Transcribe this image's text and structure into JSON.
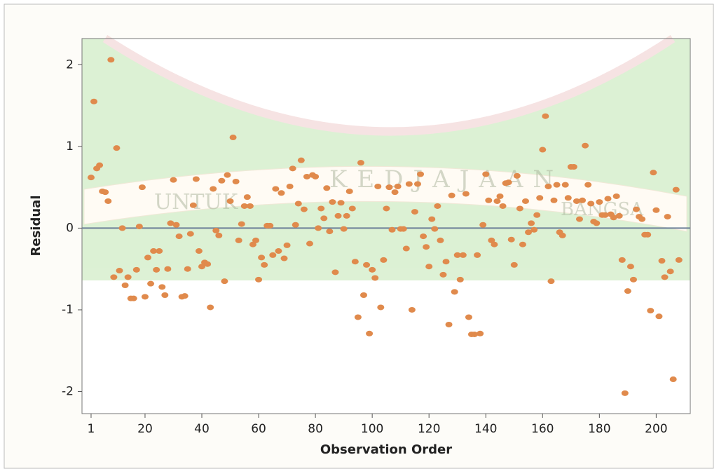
{
  "chart_data": {
    "type": "scatter",
    "x_label": "Observation Order",
    "y_label": "Residual",
    "watermark": [
      "UNTUK",
      "KEDJAJAAN",
      "BANGSA"
    ],
    "x": [
      1,
      2,
      3,
      4,
      5,
      6,
      7,
      8,
      9,
      10,
      11,
      12,
      13,
      14,
      15,
      16,
      17,
      18,
      19,
      20,
      21,
      22,
      23,
      24,
      25,
      26,
      27,
      28,
      29,
      30,
      31,
      32,
      33,
      34,
      35,
      36,
      37,
      38,
      39,
      40,
      41,
      42,
      43,
      44,
      45,
      46,
      47,
      48,
      49,
      50,
      51,
      52,
      53,
      54,
      55,
      56,
      57,
      58,
      59,
      60,
      61,
      62,
      63,
      64,
      65,
      66,
      67,
      68,
      69,
      70,
      71,
      72,
      73,
      74,
      75,
      76,
      77,
      78,
      79,
      80,
      81,
      82,
      83,
      84,
      85,
      86,
      87,
      88,
      89,
      90,
      91,
      92,
      93,
      94,
      95,
      96,
      97,
      98,
      99,
      100,
      101,
      102,
      103,
      104,
      105,
      106,
      107,
      108,
      109,
      110,
      111,
      112,
      113,
      114,
      115,
      116,
      117,
      118,
      119,
      120,
      121,
      122,
      123,
      124,
      125,
      126,
      127,
      128,
      129,
      130,
      131,
      132,
      133,
      134,
      135,
      136,
      137,
      138,
      139,
      140,
      141,
      142,
      143,
      144,
      145,
      146,
      147,
      148,
      149,
      150,
      151,
      152,
      153,
      154,
      155,
      156,
      157,
      158,
      159,
      160,
      161,
      162,
      163,
      164,
      165,
      166,
      167,
      168,
      169,
      170,
      171,
      172,
      173,
      174,
      175,
      176,
      177,
      178,
      179,
      180,
      181,
      182,
      183,
      184,
      185,
      186,
      187,
      188,
      189,
      190,
      191,
      192,
      193,
      194,
      195,
      196,
      197,
      198,
      199,
      200,
      201,
      202,
      203,
      204,
      205,
      206,
      207,
      208
    ],
    "values": [
      0.62,
      1.55,
      0.73,
      0.77,
      0.45,
      0.44,
      0.33,
      2.06,
      -0.6,
      0.98,
      -0.52,
      0.0,
      -0.7,
      -0.6,
      -0.86,
      -0.86,
      -0.51,
      0.02,
      0.5,
      -0.84,
      -0.36,
      -0.68,
      -0.28,
      -0.51,
      -0.28,
      -0.72,
      -0.82,
      -0.5,
      0.06,
      0.59,
      0.04,
      -0.1,
      -0.84,
      -0.83,
      -0.5,
      -0.07,
      0.28,
      0.6,
      -0.28,
      -0.47,
      -0.42,
      -0.44,
      -0.97,
      0.48,
      -0.03,
      -0.09,
      0.58,
      -0.65,
      0.65,
      0.33,
      1.11,
      0.57,
      -0.15,
      0.05,
      0.27,
      0.38,
      0.27,
      -0.2,
      -0.15,
      -0.63,
      -0.36,
      -0.45,
      0.03,
      0.03,
      -0.33,
      0.48,
      -0.28,
      0.43,
      -0.37,
      -0.21,
      0.51,
      0.73,
      0.04,
      0.3,
      0.83,
      0.23,
      0.63,
      -0.19,
      0.65,
      0.63,
      0.0,
      0.24,
      0.12,
      0.49,
      -0.04,
      0.32,
      -0.54,
      0.15,
      0.31,
      -0.01,
      0.15,
      0.45,
      0.24,
      -0.41,
      -1.09,
      0.8,
      -0.82,
      -0.45,
      -1.29,
      -0.51,
      -0.61,
      0.51,
      -0.97,
      -0.39,
      0.24,
      0.5,
      -0.02,
      0.44,
      0.51,
      -0.01,
      -0.01,
      -0.25,
      0.54,
      -1.0,
      0.2,
      0.54,
      0.66,
      -0.1,
      -0.23,
      -0.47,
      0.11,
      -0.01,
      0.27,
      -0.15,
      -0.57,
      -0.41,
      -1.18,
      0.4,
      -0.78,
      -0.33,
      -0.63,
      -0.33,
      0.42,
      -1.09,
      -1.3,
      -1.3,
      -0.33,
      -1.29,
      0.04,
      0.66,
      0.34,
      -0.15,
      -0.2,
      0.33,
      0.39,
      0.27,
      0.55,
      0.56,
      -0.14,
      -0.45,
      0.64,
      0.24,
      -0.2,
      0.33,
      -0.05,
      0.06,
      -0.02,
      0.16,
      0.37,
      0.96,
      1.37,
      0.51,
      -0.65,
      0.34,
      0.53,
      -0.05,
      -0.09,
      0.53,
      0.37,
      0.75,
      0.75,
      0.33,
      0.11,
      0.34,
      1.01,
      0.53,
      0.3,
      0.08,
      0.06,
      0.32,
      0.16,
      0.16,
      0.36,
      0.17,
      0.13,
      0.39,
      0.15,
      -0.39,
      -2.02,
      -0.77,
      -0.47,
      -0.63,
      0.23,
      0.14,
      0.11,
      -0.08,
      -0.08,
      -1.01,
      0.68,
      0.22,
      -1.08,
      -0.4,
      -0.6,
      0.14,
      -0.53,
      -1.85,
      0.47,
      -0.39
    ],
    "color": "#e08a4c",
    "xlim": [
      -2.2,
      212
    ],
    "ylim": [
      -2.27,
      2.32
    ],
    "xticks": [
      1,
      20,
      40,
      60,
      80,
      100,
      120,
      140,
      160,
      180,
      200
    ],
    "yticks": [
      -2,
      -1,
      0,
      1,
      2
    ],
    "reference_line": 0,
    "reference_color": "#6d7f98"
  }
}
